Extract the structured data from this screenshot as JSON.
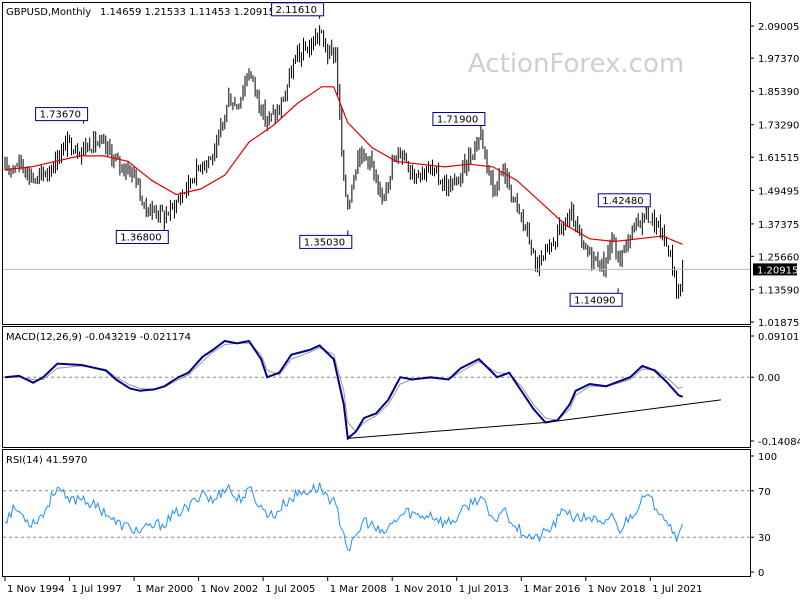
{
  "header": {
    "symbol": "GBPUSD,Monthly",
    "ohlc": "1.14659 1.21533 1.11453 1.20915"
  },
  "watermark": "ActionForex.com",
  "colors": {
    "candle": "#000000",
    "ma": "#e00000",
    "macd": "#00008b",
    "signal": "#9a9a9a",
    "rsi": "#1e90ff",
    "last_price_bg": "#000000",
    "annotation_border": "#00008b"
  },
  "chart_data": [
    {
      "type": "candlestick",
      "title": "GBPUSD,Monthly",
      "ylim": [
        0.99,
        2.14
      ],
      "y_ticks": [
        "2.09005",
        "1.97370",
        "1.85390",
        "1.73290",
        "1.61515",
        "1.49495",
        "1.37375",
        "1.25660",
        "1.13590",
        "1.01875"
      ],
      "last_price": "1.20915",
      "close_path": [
        [
          "1994-11",
          1.57
        ],
        [
          "1995-06",
          1.6
        ],
        [
          "1996-02",
          1.53
        ],
        [
          "1996-09",
          1.57
        ],
        [
          "1997-06",
          1.67
        ],
        [
          "1997-12",
          1.64
        ],
        [
          "1998-07",
          1.67
        ],
        [
          "1999-01",
          1.65
        ],
        [
          "1999-07",
          1.59
        ],
        [
          "2000-03",
          1.56
        ],
        [
          "2000-08",
          1.43
        ],
        [
          "2001-03",
          1.42
        ],
        [
          "2001-06",
          1.4
        ],
        [
          "2001-12",
          1.45
        ],
        [
          "2002-06",
          1.52
        ],
        [
          "2003-01",
          1.6
        ],
        [
          "2003-07",
          1.62
        ],
        [
          "2004-02",
          1.83
        ],
        [
          "2004-06",
          1.8
        ],
        [
          "2004-12",
          1.93
        ],
        [
          "2005-08",
          1.75
        ],
        [
          "2006-03",
          1.78
        ],
        [
          "2006-11",
          1.97
        ],
        [
          "2007-07",
          2.02
        ],
        [
          "2007-11",
          2.07
        ],
        [
          "2008-03",
          1.99
        ],
        [
          "2008-07",
          1.99
        ],
        [
          "2008-11",
          1.52
        ],
        [
          "2009-01",
          1.44
        ],
        [
          "2009-06",
          1.63
        ],
        [
          "2009-12",
          1.61
        ],
        [
          "2010-05",
          1.45
        ],
        [
          "2010-11",
          1.59
        ],
        [
          "2011-04",
          1.64
        ],
        [
          "2011-09",
          1.56
        ],
        [
          "2012-06",
          1.57
        ],
        [
          "2013-02",
          1.51
        ],
        [
          "2013-07",
          1.52
        ],
        [
          "2014-07",
          1.7
        ],
        [
          "2015-01",
          1.5
        ],
        [
          "2015-06",
          1.57
        ],
        [
          "2016-01",
          1.43
        ],
        [
          "2016-07",
          1.32
        ],
        [
          "2016-10",
          1.22
        ],
        [
          "2017-03",
          1.25
        ],
        [
          "2017-09",
          1.34
        ],
        [
          "2018-04",
          1.4
        ],
        [
          "2018-10",
          1.28
        ],
        [
          "2019-08",
          1.22
        ],
        [
          "2019-12",
          1.32
        ],
        [
          "2020-03",
          1.24
        ],
        [
          "2020-12",
          1.37
        ],
        [
          "2021-05",
          1.41
        ],
        [
          "2021-12",
          1.35
        ],
        [
          "2022-05",
          1.26
        ],
        [
          "2022-09",
          1.11
        ],
        [
          "2022-10",
          1.15
        ],
        [
          "2022-11",
          1.2092
        ]
      ],
      "moving_average": [
        [
          "1994-11",
          1.57
        ],
        [
          "1995-12",
          1.58
        ],
        [
          "1996-12",
          1.6
        ],
        [
          "1997-12",
          1.62
        ],
        [
          "1998-12",
          1.62
        ],
        [
          "1999-12",
          1.6
        ],
        [
          "2000-12",
          1.53
        ],
        [
          "2001-12",
          1.48
        ],
        [
          "2002-12",
          1.5
        ],
        [
          "2003-12",
          1.55
        ],
        [
          "2004-12",
          1.67
        ],
        [
          "2005-12",
          1.73
        ],
        [
          "2006-12",
          1.81
        ],
        [
          "2007-12",
          1.87
        ],
        [
          "2008-06",
          1.87
        ],
        [
          "2009-01",
          1.74
        ],
        [
          "2010-01",
          1.65
        ],
        [
          "2011-01",
          1.6
        ],
        [
          "2012-01",
          1.59
        ],
        [
          "2013-01",
          1.58
        ],
        [
          "2014-01",
          1.59
        ],
        [
          "2015-01",
          1.58
        ],
        [
          "2016-01",
          1.53
        ],
        [
          "2017-01",
          1.45
        ],
        [
          "2018-01",
          1.37
        ],
        [
          "2019-01",
          1.32
        ],
        [
          "2020-01",
          1.31
        ],
        [
          "2021-01",
          1.32
        ],
        [
          "2022-01",
          1.33
        ],
        [
          "2022-11",
          1.3
        ]
      ],
      "annotations": [
        {
          "label": "1.73670",
          "date": "1998-02",
          "price": 1.7367,
          "pos": "above"
        },
        {
          "label": "1.36800",
          "date": "2001-06",
          "price": 1.368,
          "pos": "below"
        },
        {
          "label": "2.11610",
          "date": "2007-11",
          "price": 2.1161,
          "pos": "above"
        },
        {
          "label": "1.35030",
          "date": "2009-01",
          "price": 1.3503,
          "pos": "below"
        },
        {
          "label": "1.71900",
          "date": "2014-07",
          "price": 1.719,
          "pos": "above"
        },
        {
          "label": "1.14090",
          "date": "2020-03",
          "price": 1.1409,
          "pos": "below"
        },
        {
          "label": "1.42480",
          "date": "2021-05",
          "price": 1.4248,
          "pos": "above"
        }
      ]
    },
    {
      "type": "line",
      "title": "MACD(12,26,9) -0.043219 -0.021174",
      "ylim": [
        -0.15,
        0.1
      ],
      "y_ticks": [
        "0.091015",
        "0.00",
        "-0.140843"
      ],
      "reference_line": 0,
      "macd": [
        [
          "1994-11",
          0.0
        ],
        [
          "1995-06",
          0.003
        ],
        [
          "1996-01",
          -0.012
        ],
        [
          "1996-06",
          0.0
        ],
        [
          "1997-01",
          0.03
        ],
        [
          "1998-01",
          0.027
        ],
        [
          "1999-01",
          0.015
        ],
        [
          "1999-06",
          -0.005
        ],
        [
          "2000-01",
          -0.025
        ],
        [
          "2000-06",
          -0.03
        ],
        [
          "2001-01",
          -0.027
        ],
        [
          "2001-06",
          -0.02
        ],
        [
          "2002-01",
          0.0
        ],
        [
          "2002-06",
          0.01
        ],
        [
          "2003-01",
          0.045
        ],
        [
          "2003-06",
          0.06
        ],
        [
          "2003-12",
          0.08
        ],
        [
          "2004-06",
          0.075
        ],
        [
          "2004-12",
          0.08
        ],
        [
          "2005-06",
          0.04
        ],
        [
          "2005-09",
          0.0
        ],
        [
          "2006-03",
          0.01
        ],
        [
          "2006-09",
          0.05
        ],
        [
          "2007-06",
          0.06
        ],
        [
          "2007-11",
          0.07
        ],
        [
          "2008-06",
          0.04
        ],
        [
          "2008-11",
          -0.06
        ],
        [
          "2009-01",
          -0.135
        ],
        [
          "2009-05",
          -0.12
        ],
        [
          "2009-09",
          -0.09
        ],
        [
          "2010-03",
          -0.08
        ],
        [
          "2010-09",
          -0.05
        ],
        [
          "2011-03",
          0.0
        ],
        [
          "2011-09",
          -0.005
        ],
        [
          "2012-06",
          0.0
        ],
        [
          "2013-03",
          -0.005
        ],
        [
          "2013-09",
          0.02
        ],
        [
          "2014-06",
          0.04
        ],
        [
          "2015-03",
          0.0
        ],
        [
          "2015-09",
          0.01
        ],
        [
          "2016-03",
          -0.03
        ],
        [
          "2016-09",
          -0.07
        ],
        [
          "2017-03",
          -0.1
        ],
        [
          "2017-09",
          -0.095
        ],
        [
          "2018-03",
          -0.06
        ],
        [
          "2018-06",
          -0.03
        ],
        [
          "2019-01",
          -0.015
        ],
        [
          "2019-09",
          -0.02
        ],
        [
          "2020-03",
          -0.01
        ],
        [
          "2020-09",
          0.0
        ],
        [
          "2021-03",
          0.025
        ],
        [
          "2021-09",
          0.015
        ],
        [
          "2022-03",
          -0.01
        ],
        [
          "2022-09",
          -0.04
        ],
        [
          "2022-11",
          -0.043219
        ]
      ],
      "signal": [
        [
          "1994-11",
          0.0
        ],
        [
          "1995-06",
          0.0
        ],
        [
          "1996-01",
          -0.005
        ],
        [
          "1996-06",
          -0.005
        ],
        [
          "1997-01",
          0.02
        ],
        [
          "1998-01",
          0.025
        ],
        [
          "1999-01",
          0.017
        ],
        [
          "1999-06",
          0.0
        ],
        [
          "2000-01",
          -0.017
        ],
        [
          "2000-06",
          -0.025
        ],
        [
          "2001-01",
          -0.027
        ],
        [
          "2001-06",
          -0.022
        ],
        [
          "2002-01",
          -0.005
        ],
        [
          "2002-06",
          0.005
        ],
        [
          "2003-01",
          0.035
        ],
        [
          "2003-06",
          0.055
        ],
        [
          "2003-12",
          0.072
        ],
        [
          "2004-06",
          0.075
        ],
        [
          "2004-12",
          0.075
        ],
        [
          "2005-06",
          0.05
        ],
        [
          "2005-09",
          0.015
        ],
        [
          "2006-03",
          0.005
        ],
        [
          "2006-09",
          0.04
        ],
        [
          "2007-06",
          0.055
        ],
        [
          "2007-11",
          0.065
        ],
        [
          "2008-06",
          0.05
        ],
        [
          "2008-11",
          -0.03
        ],
        [
          "2009-01",
          -0.1
        ],
        [
          "2009-05",
          -0.12
        ],
        [
          "2009-09",
          -0.1
        ],
        [
          "2010-03",
          -0.085
        ],
        [
          "2010-09",
          -0.06
        ],
        [
          "2011-03",
          -0.015
        ],
        [
          "2011-09",
          -0.005
        ],
        [
          "2012-06",
          -0.002
        ],
        [
          "2013-03",
          -0.005
        ],
        [
          "2013-09",
          0.012
        ],
        [
          "2014-06",
          0.035
        ],
        [
          "2015-03",
          0.01
        ],
        [
          "2015-09",
          0.008
        ],
        [
          "2016-03",
          -0.02
        ],
        [
          "2016-09",
          -0.06
        ],
        [
          "2017-03",
          -0.09
        ],
        [
          "2017-09",
          -0.095
        ],
        [
          "2018-03",
          -0.07
        ],
        [
          "2018-06",
          -0.04
        ],
        [
          "2019-01",
          -0.02
        ],
        [
          "2019-09",
          -0.02
        ],
        [
          "2020-03",
          -0.013
        ],
        [
          "2020-09",
          -0.005
        ],
        [
          "2021-03",
          0.018
        ],
        [
          "2021-09",
          0.017
        ],
        [
          "2022-03",
          0.0
        ],
        [
          "2022-09",
          -0.025
        ],
        [
          "2022-11",
          -0.021174
        ]
      ],
      "trendlines": [
        {
          "from": [
            "2009-01",
            -0.135
          ],
          "to": [
            "2017-03",
            -0.1
          ]
        },
        {
          "from": [
            "2017-03",
            -0.1
          ],
          "to": [
            "2024-06",
            -0.05
          ]
        }
      ]
    },
    {
      "type": "line",
      "title": "RSI(14) 41.5970",
      "ylim": [
        0,
        100
      ],
      "y_ticks": [
        "100",
        "70",
        "30",
        "0"
      ],
      "reference_levels": [
        70,
        30
      ],
      "values": [
        [
          "1994-11",
          45
        ],
        [
          "1995-04",
          55
        ],
        [
          "1995-12",
          42
        ],
        [
          "1996-06",
          50
        ],
        [
          "1997-01",
          75
        ],
        [
          "1997-06",
          60
        ],
        [
          "1998-01",
          65
        ],
        [
          "1998-06",
          58
        ],
        [
          "1999-01",
          52
        ],
        [
          "1999-06",
          42
        ],
        [
          "2000-01",
          38
        ],
        [
          "2000-06",
          35
        ],
        [
          "2001-01",
          40
        ],
        [
          "2001-06",
          42
        ],
        [
          "2002-01",
          52
        ],
        [
          "2002-06",
          55
        ],
        [
          "2003-01",
          70
        ],
        [
          "2003-06",
          60
        ],
        [
          "2004-01",
          75
        ],
        [
          "2004-06",
          62
        ],
        [
          "2005-01",
          70
        ],
        [
          "2005-06",
          55
        ],
        [
          "2005-12",
          48
        ],
        [
          "2006-06",
          60
        ],
        [
          "2007-01",
          68
        ],
        [
          "2007-11",
          73
        ],
        [
          "2008-06",
          60
        ],
        [
          "2008-11",
          35
        ],
        [
          "2009-01",
          20
        ],
        [
          "2009-04",
          25
        ],
        [
          "2009-09",
          45
        ],
        [
          "2010-01",
          40
        ],
        [
          "2010-06",
          32
        ],
        [
          "2011-01",
          45
        ],
        [
          "2011-06",
          52
        ],
        [
          "2012-01",
          48
        ],
        [
          "2012-06",
          50
        ],
        [
          "2013-01",
          42
        ],
        [
          "2013-06",
          45
        ],
        [
          "2014-01",
          58
        ],
        [
          "2014-07",
          65
        ],
        [
          "2015-01",
          42
        ],
        [
          "2015-06",
          55
        ],
        [
          "2016-01",
          38
        ],
        [
          "2016-06",
          32
        ],
        [
          "2016-10",
          28
        ],
        [
          "2017-06",
          38
        ],
        [
          "2018-01",
          55
        ],
        [
          "2018-06",
          45
        ],
        [
          "2019-01",
          48
        ],
        [
          "2019-08",
          38
        ],
        [
          "2019-12",
          52
        ],
        [
          "2020-03",
          35
        ],
        [
          "2020-12",
          55
        ],
        [
          "2021-05",
          65
        ],
        [
          "2021-09",
          58
        ],
        [
          "2022-01",
          52
        ],
        [
          "2022-05",
          40
        ],
        [
          "2022-09",
          28
        ],
        [
          "2022-11",
          41.597
        ]
      ]
    }
  ],
  "x_axis": {
    "labels": [
      {
        "text": "1 Nov 1994",
        "date": "1994-11"
      },
      {
        "text": "1 Jul 1997",
        "date": "1997-07"
      },
      {
        "text": "1 Mar 2000",
        "date": "2000-03"
      },
      {
        "text": "1 Nov 2002",
        "date": "2002-11"
      },
      {
        "text": "1 Jul 2005",
        "date": "2005-07"
      },
      {
        "text": "1 Mar 2008",
        "date": "2008-03"
      },
      {
        "text": "1 Nov 2010",
        "date": "2010-11"
      },
      {
        "text": "1 Jul 2013",
        "date": "2013-07"
      },
      {
        "text": "1 Mar 2016",
        "date": "2016-03"
      },
      {
        "text": "1 Nov 2018",
        "date": "2018-11"
      },
      {
        "text": "1 Jul 2021",
        "date": "2021-07"
      }
    ]
  }
}
